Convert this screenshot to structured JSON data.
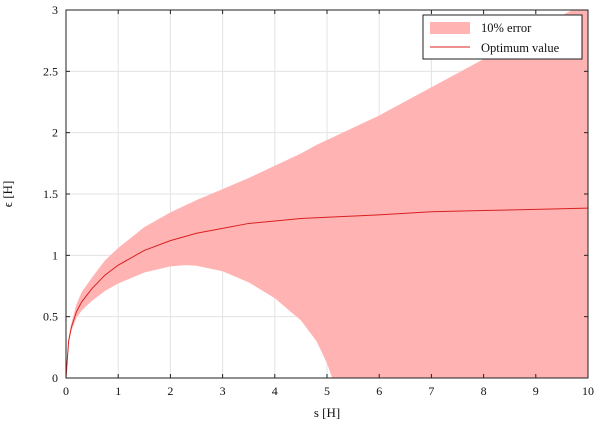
{
  "chart_data": {
    "type": "area",
    "title": "",
    "xlabel": "s [H]",
    "ylabel": "ϵ [H]",
    "xlim": [
      0,
      10
    ],
    "ylim": [
      0,
      3
    ],
    "xticks": [
      "0",
      "1",
      "2",
      "3",
      "4",
      "5",
      "6",
      "7",
      "8",
      "9",
      "10"
    ],
    "yticks": [
      "0",
      "0.5",
      "1",
      "1.5",
      "2",
      "2.5",
      "3"
    ],
    "grid": true,
    "legend_position": "top-right",
    "colors": {
      "band": "#ffb3b3",
      "line": "#d92020"
    },
    "series": [
      {
        "name": "10% error",
        "kind": "band",
        "x": [
          0,
          0.05,
          0.1,
          0.2,
          0.3,
          0.5,
          0.75,
          1,
          1.5,
          2,
          2.3,
          2.5,
          3,
          3.5,
          4,
          4.5,
          4.8,
          5,
          5.1,
          5.2,
          6,
          7,
          8,
          9,
          10
        ],
        "upper": [
          0,
          0.32,
          0.44,
          0.6,
          0.7,
          0.82,
          0.96,
          1.06,
          1.23,
          1.35,
          1.41,
          1.45,
          1.54,
          1.63,
          1.73,
          1.83,
          1.9,
          1.94,
          1.96,
          1.98,
          2.14,
          2.37,
          2.6,
          2.84,
          3.07
        ],
        "lower": [
          0,
          0.28,
          0.38,
          0.49,
          0.55,
          0.63,
          0.71,
          0.77,
          0.86,
          0.91,
          0.92,
          0.915,
          0.87,
          0.78,
          0.65,
          0.47,
          0.3,
          0.12,
          0,
          0,
          0,
          0,
          0,
          0,
          0
        ]
      },
      {
        "name": "Optimum value",
        "kind": "line",
        "x": [
          0,
          0.05,
          0.1,
          0.2,
          0.3,
          0.5,
          0.75,
          1,
          1.5,
          2,
          2.5,
          3,
          3.5,
          4,
          4.5,
          5,
          6,
          7,
          8,
          9,
          10
        ],
        "y": [
          0,
          0.3,
          0.41,
          0.54,
          0.62,
          0.73,
          0.84,
          0.92,
          1.04,
          1.12,
          1.18,
          1.22,
          1.26,
          1.28,
          1.3,
          1.31,
          1.33,
          1.355,
          1.365,
          1.375,
          1.385
        ]
      }
    ]
  }
}
